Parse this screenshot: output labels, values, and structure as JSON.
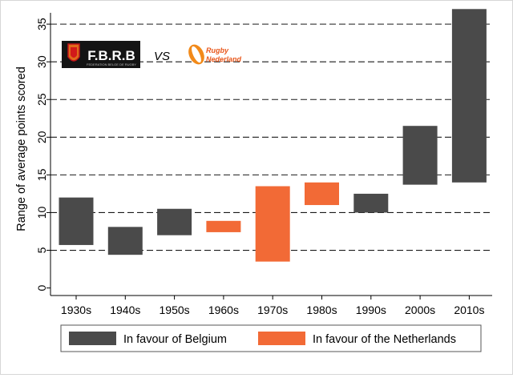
{
  "chart_data": {
    "type": "bar",
    "subtype": "floating-range",
    "title": "",
    "xlabel": "",
    "ylabel": "Range of average points scored",
    "ylim": [
      0,
      37
    ],
    "yticks": [
      0,
      5,
      10,
      15,
      20,
      25,
      30,
      35
    ],
    "grid": "horizontal-dashed",
    "legend_position": "bottom",
    "categories": [
      "1930s",
      "1940s",
      "1950s",
      "1960s",
      "1970s",
      "1980s",
      "1990s",
      "2000s",
      "2010s"
    ],
    "ranges": [
      {
        "low": 5.7,
        "high": 12.0,
        "favour": "belgium"
      },
      {
        "low": 4.4,
        "high": 8.1,
        "favour": "belgium"
      },
      {
        "low": 7.0,
        "high": 10.5,
        "favour": "belgium"
      },
      {
        "low": 7.4,
        "high": 8.9,
        "favour": "netherlands"
      },
      {
        "low": 3.5,
        "high": 13.5,
        "favour": "netherlands"
      },
      {
        "low": 11.0,
        "high": 14.0,
        "favour": "netherlands"
      },
      {
        "low": 10.0,
        "high": 12.5,
        "favour": "belgium"
      },
      {
        "low": 13.7,
        "high": 21.5,
        "favour": "belgium"
      },
      {
        "low": 14.0,
        "high": 37.0,
        "favour": "belgium"
      }
    ],
    "series": [
      {
        "key": "belgium",
        "name": "In favour of Belgium",
        "color": "#4a4a4a"
      },
      {
        "key": "netherlands",
        "name": "In favour of the Netherlands",
        "color": "#f26a36"
      }
    ]
  },
  "logos": {
    "belgium": {
      "text": "F.B.R.B",
      "subtext": "FEDERATION BELGE DE RUGBY"
    },
    "versus": "VS",
    "netherlands": {
      "text_line1": "Rugby",
      "text_line2": "Nederland"
    }
  }
}
